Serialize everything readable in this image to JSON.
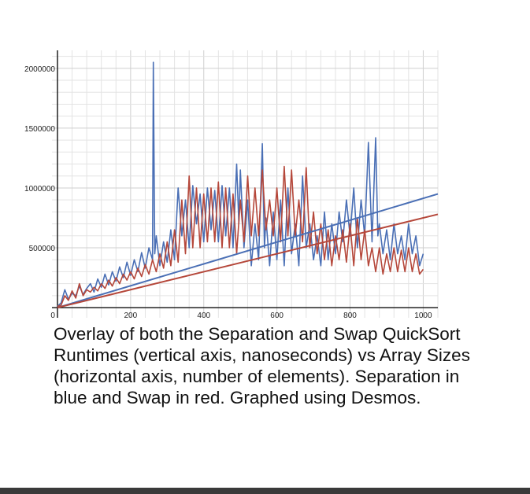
{
  "caption": "Overlay of both the Separation and Swap QuickSort Runtimes (vertical axis, nanoseconds) vs Array Sizes (horizontal axis, number of elements). Separation in blue and Swap in red. Graphed using Desmos.",
  "colors": {
    "blue": "#4a6fb5",
    "red": "#b5473a",
    "grid": "#e3e3e3",
    "gridMajor": "#cfcfcf",
    "bottom_bar": "#3a3a3a"
  },
  "chart_data": {
    "type": "line",
    "title": "",
    "xlabel": "",
    "ylabel": "",
    "xlim": [
      -15,
      1040
    ],
    "ylim": [
      -85000,
      2150000
    ],
    "x_ticks": [
      200,
      400,
      600,
      800,
      1000
    ],
    "y_ticks": [
      500000,
      1000000,
      1500000,
      2000000
    ],
    "x_tick_labels": [
      "200",
      "400",
      "600",
      "800",
      "1000"
    ],
    "y_tick_labels": [
      "500000",
      "1000000",
      "1500000",
      "2000000"
    ],
    "origin_label": "0",
    "grid": true,
    "series": [
      {
        "color": "blue",
        "values": [
          [
            0,
            10000
          ],
          [
            10,
            40000
          ],
          [
            20,
            150000
          ],
          [
            30,
            70000
          ],
          [
            40,
            120000
          ],
          [
            50,
            100000
          ],
          [
            60,
            180000
          ],
          [
            70,
            110000
          ],
          [
            80,
            160000
          ],
          [
            90,
            200000
          ],
          [
            100,
            130000
          ],
          [
            110,
            240000
          ],
          [
            120,
            170000
          ],
          [
            130,
            280000
          ],
          [
            140,
            190000
          ],
          [
            150,
            300000
          ],
          [
            160,
            220000
          ],
          [
            170,
            340000
          ],
          [
            180,
            250000
          ],
          [
            190,
            380000
          ],
          [
            200,
            270000
          ],
          [
            210,
            400000
          ],
          [
            220,
            300000
          ],
          [
            230,
            460000
          ],
          [
            240,
            330000
          ],
          [
            250,
            500000
          ],
          [
            260,
            400000
          ],
          [
            262,
            2050000
          ],
          [
            266,
            450000
          ],
          [
            270,
            600000
          ],
          [
            280,
            350000
          ],
          [
            290,
            550000
          ],
          [
            300,
            380000
          ],
          [
            310,
            650000
          ],
          [
            320,
            400000
          ],
          [
            330,
            1000000
          ],
          [
            340,
            600000
          ],
          [
            350,
            900000
          ],
          [
            360,
            500000
          ],
          [
            370,
            1020000
          ],
          [
            380,
            700000
          ],
          [
            390,
            950000
          ],
          [
            400,
            550000
          ],
          [
            410,
            1000000
          ],
          [
            420,
            650000
          ],
          [
            430,
            980000
          ],
          [
            440,
            550000
          ],
          [
            450,
            1020000
          ],
          [
            460,
            600000
          ],
          [
            470,
            1000000
          ],
          [
            480,
            500000
          ],
          [
            490,
            1200000
          ],
          [
            496,
            700000
          ],
          [
            500,
            1150000
          ],
          [
            510,
            500000
          ],
          [
            520,
            900000
          ],
          [
            530,
            350000
          ],
          [
            540,
            700000
          ],
          [
            550,
            400000
          ],
          [
            560,
            1370000
          ],
          [
            566,
            500000
          ],
          [
            570,
            750000
          ],
          [
            580,
            350000
          ],
          [
            590,
            800000
          ],
          [
            600,
            400000
          ],
          [
            610,
            900000
          ],
          [
            620,
            350000
          ],
          [
            630,
            1000000
          ],
          [
            640,
            450000
          ],
          [
            650,
            700000
          ],
          [
            660,
            350000
          ],
          [
            670,
            1100000
          ],
          [
            680,
            500000
          ],
          [
            690,
            700000
          ],
          [
            700,
            400000
          ],
          [
            710,
            600000
          ],
          [
            720,
            350000
          ],
          [
            730,
            800000
          ],
          [
            740,
            400000
          ],
          [
            750,
            700000
          ],
          [
            760,
            450000
          ],
          [
            770,
            800000
          ],
          [
            780,
            550000
          ],
          [
            790,
            900000
          ],
          [
            800,
            600000
          ],
          [
            810,
            1000000
          ],
          [
            820,
            500000
          ],
          [
            830,
            900000
          ],
          [
            840,
            600000
          ],
          [
            850,
            1380000
          ],
          [
            860,
            550000
          ],
          [
            870,
            1420000
          ],
          [
            876,
            600000
          ],
          [
            880,
            700000
          ],
          [
            890,
            450000
          ],
          [
            900,
            650000
          ],
          [
            910,
            400000
          ],
          [
            920,
            700000
          ],
          [
            930,
            450000
          ],
          [
            940,
            600000
          ],
          [
            950,
            400000
          ],
          [
            960,
            700000
          ],
          [
            970,
            450000
          ],
          [
            980,
            600000
          ],
          [
            990,
            350000
          ],
          [
            1000,
            450000
          ]
        ]
      },
      {
        "color": "red",
        "values": [
          [
            0,
            10000
          ],
          [
            10,
            20000
          ],
          [
            20,
            100000
          ],
          [
            30,
            60000
          ],
          [
            40,
            140000
          ],
          [
            50,
            80000
          ],
          [
            60,
            200000
          ],
          [
            70,
            100000
          ],
          [
            80,
            150000
          ],
          [
            90,
            130000
          ],
          [
            100,
            170000
          ],
          [
            110,
            140000
          ],
          [
            120,
            200000
          ],
          [
            130,
            160000
          ],
          [
            140,
            230000
          ],
          [
            150,
            180000
          ],
          [
            160,
            250000
          ],
          [
            170,
            200000
          ],
          [
            180,
            280000
          ],
          [
            190,
            230000
          ],
          [
            200,
            300000
          ],
          [
            210,
            240000
          ],
          [
            220,
            330000
          ],
          [
            230,
            260000
          ],
          [
            240,
            360000
          ],
          [
            250,
            280000
          ],
          [
            260,
            400000
          ],
          [
            270,
            300000
          ],
          [
            280,
            450000
          ],
          [
            290,
            330000
          ],
          [
            300,
            550000
          ],
          [
            310,
            350000
          ],
          [
            320,
            650000
          ],
          [
            330,
            380000
          ],
          [
            340,
            900000
          ],
          [
            350,
            450000
          ],
          [
            360,
            1100000
          ],
          [
            370,
            500000
          ],
          [
            380,
            1000000
          ],
          [
            390,
            500000
          ],
          [
            400,
            950000
          ],
          [
            410,
            550000
          ],
          [
            420,
            1000000
          ],
          [
            430,
            550000
          ],
          [
            440,
            1050000
          ],
          [
            450,
            500000
          ],
          [
            460,
            1000000
          ],
          [
            470,
            500000
          ],
          [
            480,
            950000
          ],
          [
            490,
            450000
          ],
          [
            500,
            900000
          ],
          [
            510,
            550000
          ],
          [
            520,
            1100000
          ],
          [
            530,
            600000
          ],
          [
            540,
            1000000
          ],
          [
            550,
            600000
          ],
          [
            560,
            1150000
          ],
          [
            570,
            650000
          ],
          [
            580,
            900000
          ],
          [
            590,
            600000
          ],
          [
            600,
            1000000
          ],
          [
            610,
            550000
          ],
          [
            620,
            1180000
          ],
          [
            630,
            600000
          ],
          [
            640,
            1150000
          ],
          [
            650,
            600000
          ],
          [
            660,
            900000
          ],
          [
            670,
            550000
          ],
          [
            680,
            1170000
          ],
          [
            690,
            500000
          ],
          [
            700,
            800000
          ],
          [
            710,
            450000
          ],
          [
            720,
            700000
          ],
          [
            730,
            400000
          ],
          [
            740,
            650000
          ],
          [
            750,
            350000
          ],
          [
            760,
            600000
          ],
          [
            770,
            400000
          ],
          [
            780,
            650000
          ],
          [
            790,
            380000
          ],
          [
            800,
            700000
          ],
          [
            810,
            350000
          ],
          [
            820,
            750000
          ],
          [
            830,
            400000
          ],
          [
            840,
            650000
          ],
          [
            850,
            350000
          ],
          [
            860,
            500000
          ],
          [
            870,
            300000
          ],
          [
            880,
            500000
          ],
          [
            890,
            280000
          ],
          [
            900,
            450000
          ],
          [
            910,
            300000
          ],
          [
            920,
            500000
          ],
          [
            930,
            300000
          ],
          [
            940,
            480000
          ],
          [
            950,
            300000
          ],
          [
            960,
            500000
          ],
          [
            970,
            300000
          ],
          [
            980,
            450000
          ],
          [
            990,
            280000
          ],
          [
            1000,
            320000
          ]
        ]
      }
    ],
    "trendlines": [
      {
        "color": "blue",
        "from": [
          0,
          0
        ],
        "to": [
          1040,
          950000
        ]
      },
      {
        "color": "red",
        "from": [
          0,
          0
        ],
        "to": [
          1040,
          780000
        ]
      }
    ]
  }
}
